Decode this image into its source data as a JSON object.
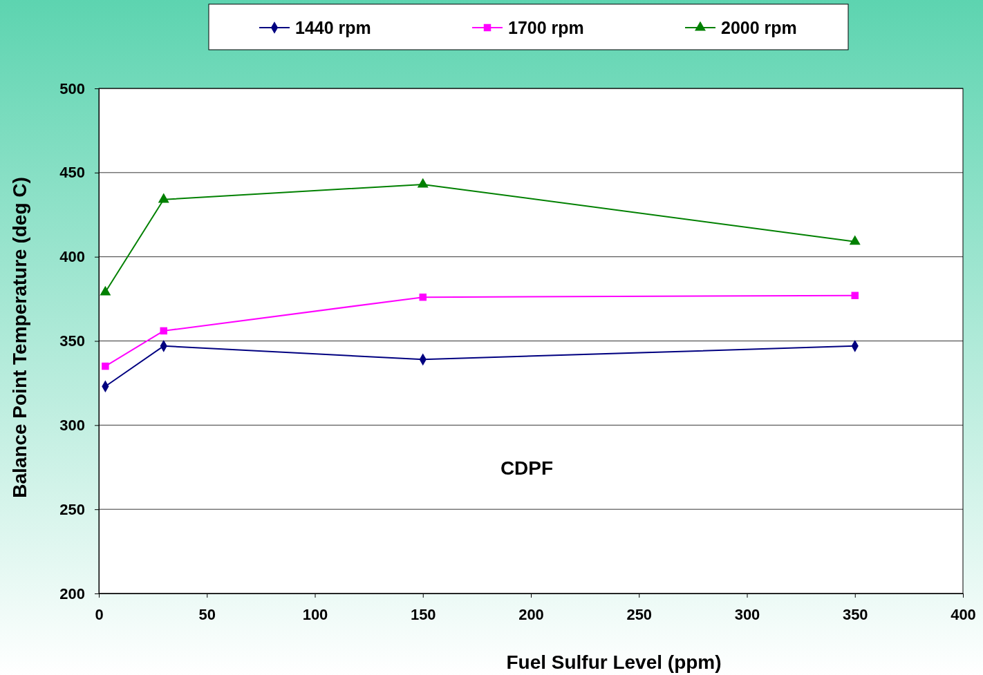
{
  "chart_data": {
    "type": "line",
    "xlabel": "Fuel Sulfur Level  (ppm)",
    "ylabel": "Balance Point Temperature  (deg C)",
    "x": [
      3,
      30,
      150,
      350
    ],
    "series": [
      {
        "name": "1440 rpm",
        "color": "#000080",
        "marker": "diamond",
        "values": [
          323,
          347,
          339,
          347
        ]
      },
      {
        "name": "1700 rpm",
        "color": "#ff00ff",
        "marker": "square",
        "values": [
          335,
          356,
          376,
          377
        ]
      },
      {
        "name": "2000 rpm",
        "color": "#008000",
        "marker": "triangle",
        "values": [
          379,
          434,
          443,
          409
        ]
      }
    ],
    "xlim": [
      0,
      400
    ],
    "xticks": [
      0,
      50,
      100,
      150,
      200,
      250,
      300,
      350,
      400
    ],
    "ylim": [
      200,
      500
    ],
    "yticks": [
      200,
      250,
      300,
      350,
      400,
      450,
      500
    ],
    "grid": "y",
    "legend": "top",
    "line_style": "solid",
    "annotations": [
      "CDPF"
    ]
  }
}
